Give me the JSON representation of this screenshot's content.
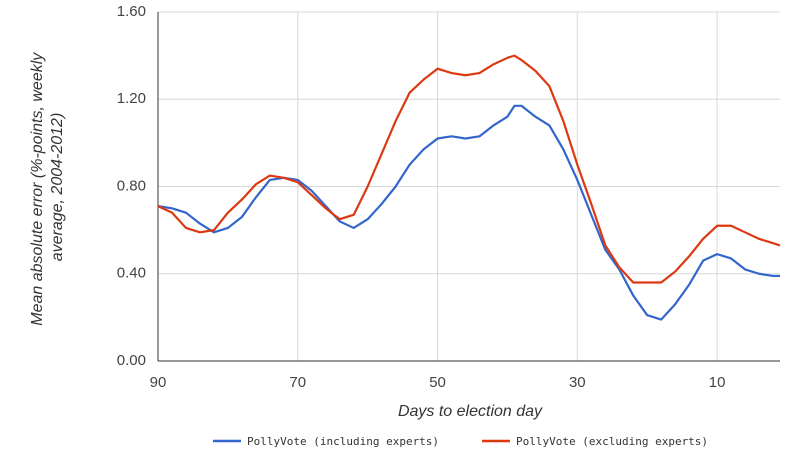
{
  "chart_data": {
    "type": "line",
    "x_label": "Days to election day",
    "y_label": [
      "Mean absolute error (%-points, weekly",
      "average, 2004-2012)"
    ],
    "x": [
      90,
      88,
      86,
      84,
      82,
      80,
      78,
      76,
      74,
      72,
      70,
      68,
      66,
      64,
      62,
      60,
      58,
      56,
      54,
      52,
      50,
      48,
      46,
      44,
      42,
      40,
      39,
      38,
      36,
      34,
      32,
      30,
      28,
      26,
      24,
      22,
      20,
      18,
      16,
      14,
      12,
      10,
      8,
      6,
      4,
      2,
      1
    ],
    "series": [
      {
        "name": "PollyVote (including experts)",
        "color": "#3366cc",
        "values": [
          0.71,
          0.7,
          0.68,
          0.63,
          0.59,
          0.61,
          0.66,
          0.75,
          0.83,
          0.84,
          0.83,
          0.78,
          0.71,
          0.64,
          0.61,
          0.65,
          0.72,
          0.8,
          0.9,
          0.97,
          1.02,
          1.03,
          1.02,
          1.03,
          1.08,
          1.12,
          1.17,
          1.17,
          1.12,
          1.08,
          0.97,
          0.83,
          0.67,
          0.51,
          0.42,
          0.3,
          0.21,
          0.19,
          0.26,
          0.35,
          0.46,
          0.49,
          0.47,
          0.42,
          0.4,
          0.39,
          0.39
        ]
      },
      {
        "name": "PollyVote (excluding experts)",
        "color": "#dc3912",
        "values": [
          0.71,
          0.68,
          0.61,
          0.59,
          0.6,
          0.68,
          0.74,
          0.81,
          0.85,
          0.84,
          0.82,
          0.76,
          0.7,
          0.65,
          0.67,
          0.8,
          0.95,
          1.1,
          1.23,
          1.29,
          1.34,
          1.32,
          1.31,
          1.32,
          1.36,
          1.39,
          1.4,
          1.38,
          1.33,
          1.26,
          1.1,
          0.9,
          0.72,
          0.53,
          0.43,
          0.36,
          0.36,
          0.36,
          0.41,
          0.48,
          0.56,
          0.62,
          0.62,
          0.59,
          0.56,
          0.54,
          0.53
        ]
      }
    ],
    "xlim": [
      90,
      1
    ],
    "xticks": [
      90,
      70,
      50,
      30,
      10
    ],
    "ylim": [
      0,
      1.6
    ],
    "yticks": [
      {
        "value": 0,
        "label": "0.00"
      },
      {
        "value": 0.4,
        "label": "0.40"
      },
      {
        "value": 0.8,
        "label": "0.80"
      },
      {
        "value": 1.2,
        "label": "1.20"
      },
      {
        "value": 1.6,
        "label": "1.60"
      }
    ],
    "grid": true,
    "legend": "bottom"
  }
}
